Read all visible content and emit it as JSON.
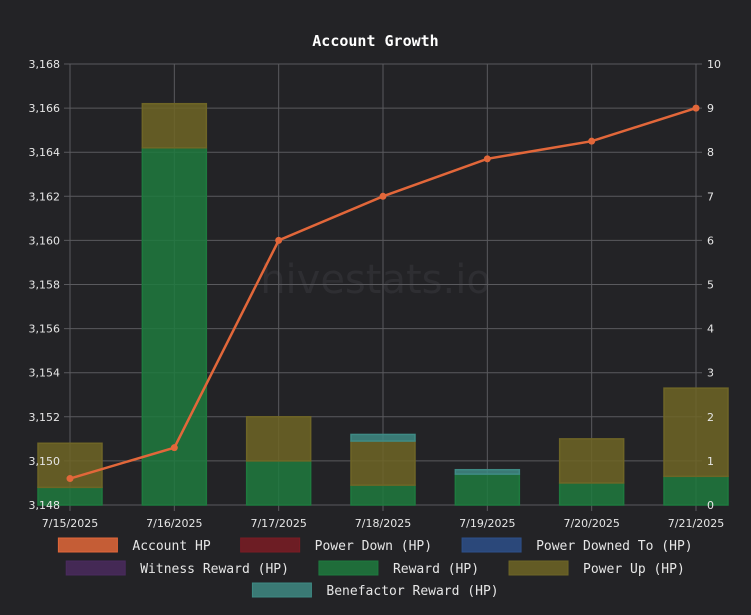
{
  "chart_data": {
    "type": "bar",
    "title": "Account Growth",
    "watermark": "hivestats.io",
    "categories": [
      "7/15/2025",
      "7/16/2025",
      "7/17/2025",
      "7/18/2025",
      "7/19/2025",
      "7/20/2025",
      "7/21/2025"
    ],
    "y_left": {
      "min": 3148,
      "max": 3168,
      "step": 2,
      "labels": [
        "3,148",
        "3,150",
        "3,152",
        "3,154",
        "3,156",
        "3,158",
        "3,160",
        "3,162",
        "3,164",
        "3,166",
        "3,168"
      ]
    },
    "y_right": {
      "min": 0,
      "max": 10,
      "step": 1,
      "labels": [
        "0",
        "1",
        "2",
        "3",
        "4",
        "5",
        "6",
        "7",
        "8",
        "9",
        "10"
      ]
    },
    "grid": true,
    "legend_position": "bottom",
    "series": [
      {
        "name": "Account HP",
        "type": "line",
        "axis": "left",
        "color": "#e2673a",
        "values": [
          3149.2,
          3150.6,
          3160.0,
          3162.0,
          3163.7,
          3164.5,
          3166.0
        ]
      },
      {
        "name": "Power Down (HP)",
        "type": "bar",
        "axis": "right",
        "color": "#7a1c24",
        "values": [
          0,
          0,
          0,
          0,
          0,
          0,
          0
        ]
      },
      {
        "name": "Power Downed To (HP)",
        "type": "bar",
        "axis": "right",
        "color": "#2d4f8a",
        "values": [
          0,
          0,
          0,
          0,
          0,
          0,
          0
        ]
      },
      {
        "name": "Witness Reward (HP)",
        "type": "bar",
        "axis": "right",
        "color": "#4a2a5e",
        "values": [
          0,
          0,
          0,
          0,
          0,
          0,
          0
        ]
      },
      {
        "name": "Reward (HP)",
        "type": "bar",
        "axis": "right",
        "color": "#1e7a3e",
        "values": [
          0.4,
          8.1,
          1.0,
          0.45,
          0.7,
          0.5,
          0.65
        ]
      },
      {
        "name": "Power Up (HP)",
        "type": "bar",
        "axis": "right",
        "color": "#6e6526",
        "values": [
          1.0,
          1.0,
          1.0,
          1.0,
          0,
          1.0,
          2.0
        ]
      },
      {
        "name": "Benefactor Reward (HP)",
        "type": "bar",
        "axis": "right",
        "color": "#3e8a84",
        "values": [
          0,
          0,
          0,
          0.15,
          0.1,
          0,
          0
        ]
      }
    ]
  }
}
